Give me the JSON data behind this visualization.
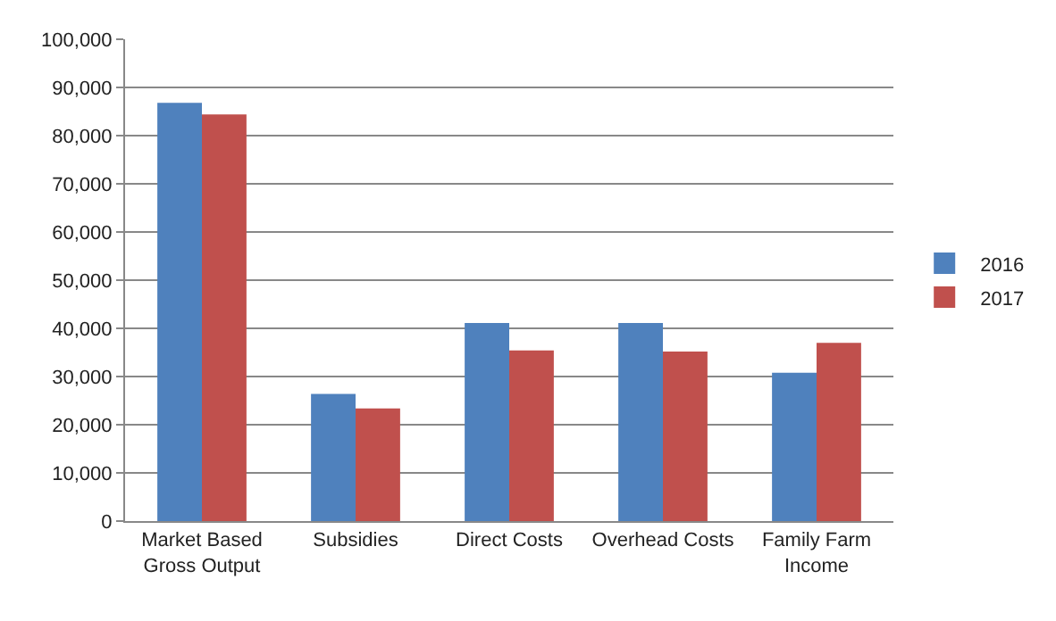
{
  "chart_data": {
    "type": "bar",
    "categories": [
      "Market Based\nGross Output",
      "Subsidies",
      "Direct Costs",
      "Overhead Costs",
      "Family Farm\nIncome"
    ],
    "series": [
      {
        "name": "2016",
        "color": "#4f81bd",
        "values": [
          86800,
          26400,
          41100,
          41100,
          30800
        ]
      },
      {
        "name": "2017",
        "color": "#c0504d",
        "values": [
          84400,
          23400,
          35400,
          35200,
          37000
        ]
      }
    ],
    "ylim": [
      0,
      100000
    ],
    "yticks": [
      {
        "value": 0,
        "label": "0"
      },
      {
        "value": 10000,
        "label": "10,000"
      },
      {
        "value": 20000,
        "label": "20,000"
      },
      {
        "value": 30000,
        "label": "30,000"
      },
      {
        "value": 40000,
        "label": "40,000"
      },
      {
        "value": 50000,
        "label": "50,000"
      },
      {
        "value": 60000,
        "label": "60,000"
      },
      {
        "value": 70000,
        "label": "70,000"
      },
      {
        "value": 80000,
        "label": "80,000"
      },
      {
        "value": 90000,
        "label": "90,000"
      },
      {
        "value": 100000,
        "label": "100,000"
      }
    ],
    "grid": "y",
    "legend": "right"
  }
}
